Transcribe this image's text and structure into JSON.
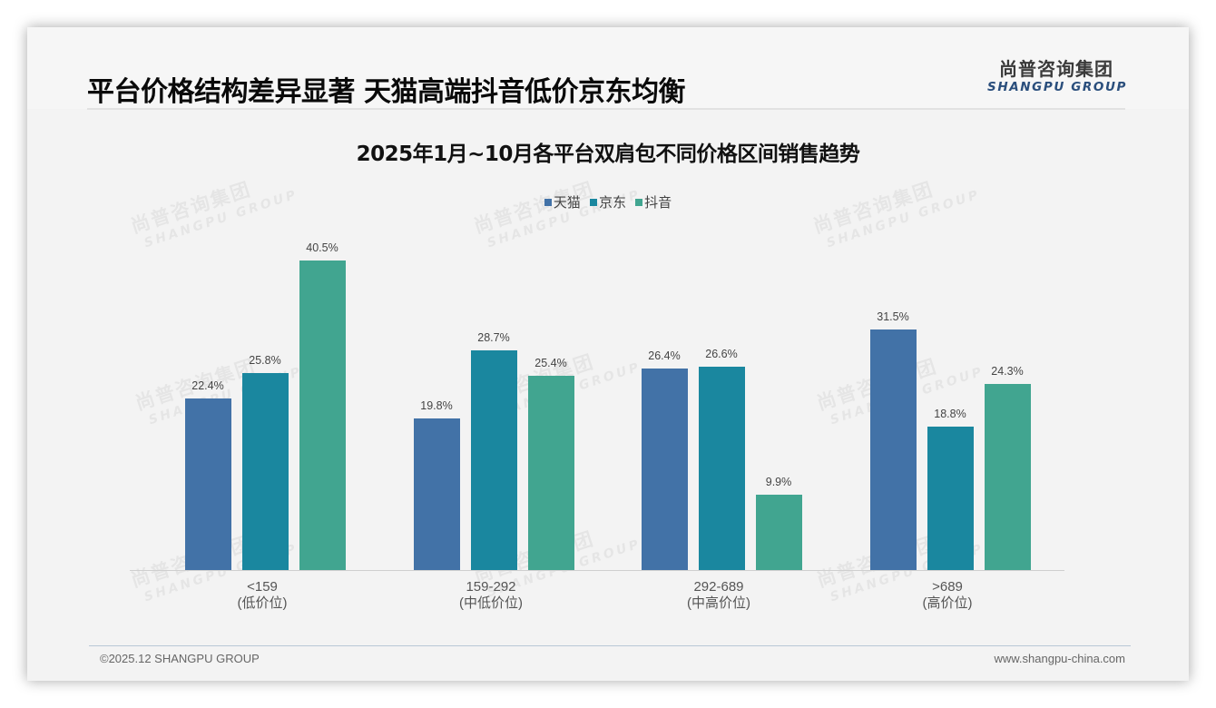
{
  "header": {
    "title": "平台价格结构差异显著 天猫高端抖音低价京东均衡",
    "logo_cn": "尚普咨询集团",
    "logo_en": "SHANGPU GROUP"
  },
  "watermark": {
    "cn": "尚普咨询集团",
    "en": "SHANGPU GROUP"
  },
  "colors": {
    "tmall": "#4272a7",
    "jd": "#1a879f",
    "douyin": "#41a590",
    "background": "#f3f3f3"
  },
  "chart_data": {
    "type": "bar",
    "title": "2025年1月~10月各平台双肩包不同价格区间销售趋势",
    "xlabel": "",
    "ylabel": "",
    "ylim": [
      0,
      45
    ],
    "grid": false,
    "legend_position": "top",
    "categories": [
      "<159",
      "159-292",
      "292-689",
      ">689"
    ],
    "category_sublabels": [
      "(低价位)",
      "(中低价位)",
      "(中高价位)",
      "(高价位)"
    ],
    "series": [
      {
        "name": "天猫",
        "color": "#4272a7",
        "values": [
          22.4,
          19.8,
          26.4,
          31.5
        ],
        "labels": [
          "22.4%",
          "19.8%",
          "26.4%",
          "31.5%"
        ]
      },
      {
        "name": "京东",
        "color": "#1a879f",
        "values": [
          25.8,
          28.7,
          26.6,
          18.8
        ],
        "labels": [
          "25.8%",
          "28.7%",
          "26.6%",
          "18.8%"
        ]
      },
      {
        "name": "抖音",
        "color": "#41a590",
        "values": [
          40.5,
          25.4,
          9.9,
          24.3
        ],
        "labels": [
          "40.5%",
          "25.4%",
          "9.9%",
          "24.3%"
        ]
      }
    ],
    "unit": "%"
  },
  "footer": {
    "copyright": "©2025.12 SHANGPU GROUP",
    "website": "www.shangpu-china.com"
  }
}
